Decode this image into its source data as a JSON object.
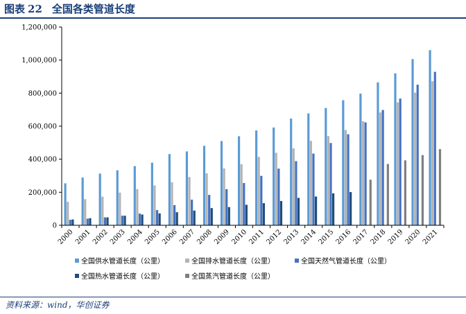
{
  "figure": {
    "label": "图表",
    "number": "22",
    "title": "全国各类管道长度"
  },
  "source": "资料来源：wind，华创证券",
  "chart_data": {
    "type": "bar",
    "categories": [
      "2000",
      "2001",
      "2002",
      "2003",
      "2004",
      "2005",
      "2006",
      "2007",
      "2008",
      "2009",
      "2010",
      "2011",
      "2012",
      "2013",
      "2014",
      "2015",
      "2016",
      "2017",
      "2018",
      "2019",
      "2020",
      "2021"
    ],
    "ylim": [
      0,
      1200000
    ],
    "yticks": [
      0,
      200000,
      400000,
      600000,
      800000,
      1000000,
      1200000
    ],
    "ytick_labels": [
      "0",
      "200,000",
      "400,000",
      "600,000",
      "800,000",
      "1,000,000",
      "1,200,000"
    ],
    "grid": false,
    "legend_position": "bottom",
    "series": [
      {
        "name": "全国供水管道长度（公里）",
        "color": "#5b9bd5",
        "values": [
          254000,
          289000,
          313000,
          333000,
          358000,
          379000,
          431000,
          447000,
          481000,
          510000,
          539000,
          574000,
          592000,
          646000,
          677000,
          710000,
          757000,
          797000,
          865000,
          920000,
          1006000,
          1060000
        ]
      },
      {
        "name": "全国排水管道长度（公里）",
        "color": "#b4b4b4",
        "values": [
          142000,
          158000,
          173000,
          198000,
          219000,
          241000,
          261000,
          292000,
          315000,
          344000,
          370000,
          414000,
          439000,
          465000,
          511000,
          540000,
          577000,
          630000,
          683000,
          744000,
          803000,
          872000
        ]
      },
      {
        "name": "全国天然气管道长度（公里）",
        "color": "#4472c4",
        "values": [
          33000,
          40000,
          48000,
          58000,
          71000,
          92000,
          122000,
          155000,
          184000,
          219000,
          256000,
          299000,
          343000,
          388000,
          434000,
          498000,
          551000,
          623000,
          698000,
          767000,
          851000,
          929000
        ]
      },
      {
        "name": "全国热水管道长度（公里）",
        "color": "#1f4e79",
        "values": [
          35000,
          43000,
          48000,
          58000,
          65000,
          72000,
          79000,
          89000,
          104000,
          110000,
          124000,
          134000,
          147000,
          166000,
          174000,
          193000,
          201000,
          0,
          0,
          0,
          0,
          0
        ]
      },
      {
        "name": "全国蒸汽管道长度（公里）",
        "color": "#7f7f7f",
        "values": [
          0,
          0,
          0,
          0,
          0,
          0,
          0,
          0,
          0,
          0,
          0,
          0,
          0,
          0,
          0,
          0,
          0,
          276000,
          371000,
          393000,
          425000,
          461000
        ]
      }
    ]
  }
}
